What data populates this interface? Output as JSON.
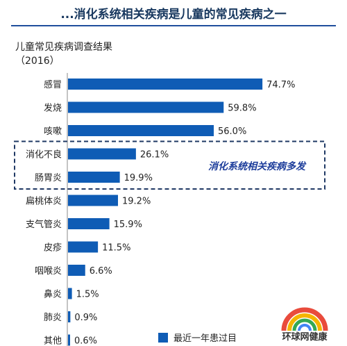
{
  "title": "...消化系统相关疾病是儿童的常见疾病之一",
  "subtitle_line1": "儿童常见疾病调查结果",
  "subtitle_line2": "（2016）",
  "legend_label": "最近一年患过目",
  "highlight_label": "消化系统相关疾病多发",
  "watermark_text": "环球网健康",
  "colors": {
    "bar": "#0f5cb5",
    "highlight_border": "#1f3864",
    "highlight_text": "#1f3f9c"
  },
  "chart_data": {
    "type": "bar",
    "orientation": "horizontal",
    "categories": [
      "感冒",
      "发烧",
      "咳嗽",
      "消化不良",
      "肠胃炎",
      "扁桃体炎",
      "支气管炎",
      "皮疹",
      "咽喉炎",
      "鼻炎",
      "肺炎",
      "其他"
    ],
    "values": [
      74.7,
      59.8,
      56.0,
      26.1,
      19.9,
      19.2,
      15.9,
      11.5,
      6.6,
      1.5,
      0.9,
      0.6
    ],
    "value_labels": [
      "74.7%",
      "59.8%",
      "56.0%",
      "26.1%",
      "19.9%",
      "19.2%",
      "15.9%",
      "11.5%",
      "6.6%",
      "1.5%",
      "0.9%",
      "0.6%"
    ],
    "highlighted_categories": [
      "消化不良",
      "肠胃炎"
    ],
    "xlim": [
      0,
      100
    ],
    "legend_position": "bottom"
  }
}
